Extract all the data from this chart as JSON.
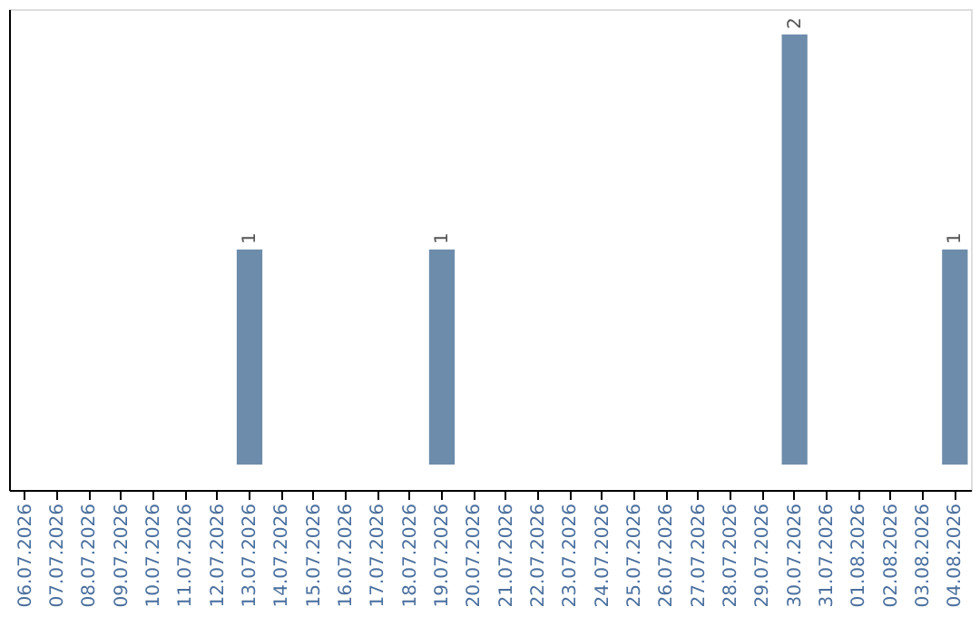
{
  "chart_data": {
    "type": "bar",
    "categories": [
      "06.07.2026",
      "07.07.2026",
      "08.07.2026",
      "09.07.2026",
      "10.07.2026",
      "11.07.2026",
      "12.07.2026",
      "13.07.2026",
      "14.07.2026",
      "15.07.2026",
      "16.07.2026",
      "17.07.2026",
      "18.07.2026",
      "19.07.2026",
      "20.07.2026",
      "21.07.2026",
      "22.07.2026",
      "23.07.2026",
      "24.07.2026",
      "25.07.2026",
      "26.07.2026",
      "27.07.2026",
      "28.07.2026",
      "29.07.2026",
      "30.07.2026",
      "31.07.2026",
      "01.08.2026",
      "02.08.2026",
      "03.08.2026",
      "04.08.2026"
    ],
    "values": [
      0,
      0,
      0,
      0,
      0,
      0,
      0,
      1,
      0,
      0,
      0,
      0,
      0,
      1,
      0,
      0,
      0,
      0,
      0,
      0,
      0,
      0,
      0,
      0,
      2,
      0,
      0,
      0,
      0,
      1
    ],
    "value_labels": [
      null,
      null,
      null,
      null,
      null,
      null,
      null,
      "1",
      null,
      null,
      null,
      null,
      null,
      "1",
      null,
      null,
      null,
      null,
      null,
      null,
      null,
      null,
      null,
      null,
      "2",
      null,
      null,
      null,
      null,
      "1"
    ],
    "color": "#6d8cab",
    "tick_labels": "x",
    "grid": false
  }
}
